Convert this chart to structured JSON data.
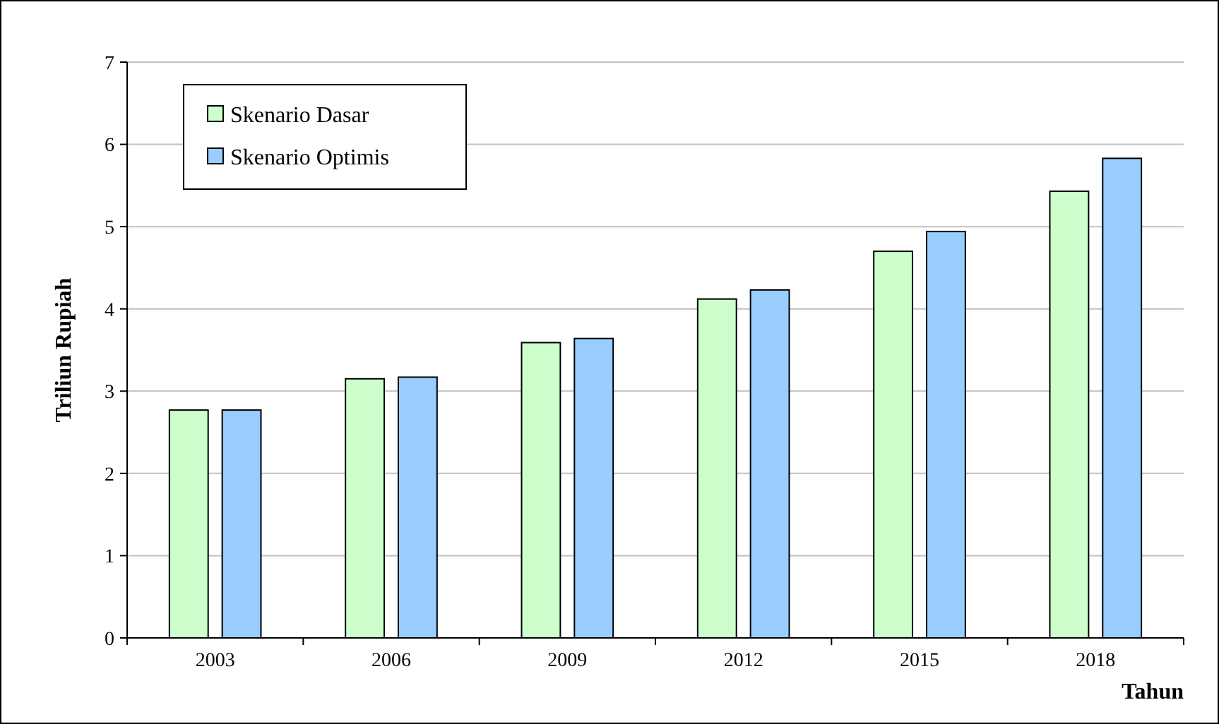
{
  "chart_data": {
    "type": "bar",
    "categories": [
      "2003",
      "2006",
      "2009",
      "2012",
      "2015",
      "2018"
    ],
    "series": [
      {
        "name": "Skenario Dasar",
        "color": "#ccffcc",
        "values": [
          2.77,
          3.15,
          3.59,
          4.12,
          4.7,
          5.43
        ]
      },
      {
        "name": "Skenario Optimis",
        "color": "#99ccff",
        "values": [
          2.77,
          3.17,
          3.64,
          4.23,
          4.94,
          5.83
        ]
      }
    ],
    "ylim": [
      0,
      7
    ],
    "yticks": [
      0,
      1,
      2,
      3,
      4,
      5,
      6,
      7
    ],
    "ylabel": "Triliun Rupiah",
    "xlabel": "Tahun",
    "grid": "y",
    "legend": "top left"
  }
}
